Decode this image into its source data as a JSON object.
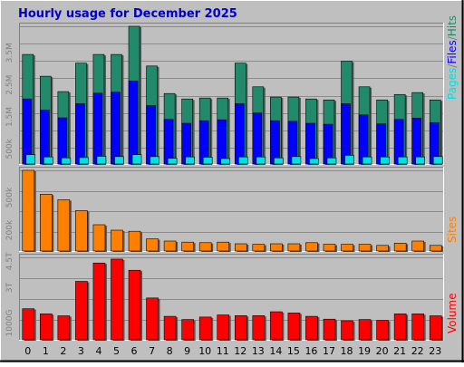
{
  "title": "Hourly usage for December 2025",
  "colors": {
    "hits": "#218a6b",
    "files": "#0000ff",
    "pages": "#00e0e0",
    "sites": "#ff8000",
    "volume": "#ff0000",
    "title": "#0000cc",
    "panel": "#bfbfbf"
  },
  "chart_data": [
    {
      "type": "bar",
      "title": "Hourly usage for December 2025",
      "categories": [
        "0",
        "1",
        "2",
        "3",
        "4",
        "5",
        "6",
        "7",
        "8",
        "9",
        "10",
        "11",
        "12",
        "13",
        "14",
        "15",
        "16",
        "17",
        "18",
        "19",
        "20",
        "21",
        "22",
        "23"
      ],
      "yticks": [
        "500k",
        "1.5M",
        "2.5M",
        "3.5M"
      ],
      "ytick_values": [
        500000,
        1500000,
        2500000,
        3500000
      ],
      "ylim": [
        0,
        4330000
      ],
      "legend": [
        {
          "label": "Pages",
          "color": "#00e0e0"
        },
        {
          "label": "/",
          "color": "#808080"
        },
        {
          "label": "Files",
          "color": "#0000ff"
        },
        {
          "label": "/",
          "color": "#808080"
        },
        {
          "label": "Hits",
          "color": "#218a6b"
        }
      ],
      "series": [
        {
          "name": "Hits",
          "values": [
            3450000,
            2770000,
            2290000,
            3180000,
            3450000,
            3450000,
            4330000,
            3090000,
            2230000,
            2060000,
            2090000,
            2090000,
            3180000,
            2440000,
            2120000,
            2120000,
            2060000,
            2030000,
            3240000,
            2440000,
            2030000,
            2200000,
            2260000,
            2030000
          ]
        },
        {
          "name": "Files",
          "values": [
            2060000,
            1710000,
            1470000,
            1910000,
            2240000,
            2270000,
            2620000,
            1850000,
            1420000,
            1300000,
            1380000,
            1410000,
            1910000,
            1620000,
            1380000,
            1360000,
            1300000,
            1270000,
            1910000,
            1560000,
            1280000,
            1420000,
            1460000,
            1320000
          ]
        },
        {
          "name": "Pages",
          "values": [
            320000,
            250000,
            220000,
            230000,
            270000,
            260000,
            320000,
            260000,
            210000,
            250000,
            240000,
            200000,
            250000,
            250000,
            220000,
            260000,
            200000,
            220000,
            300000,
            250000,
            250000,
            250000,
            250000,
            260000
          ]
        }
      ]
    },
    {
      "type": "bar",
      "categories": [
        "0",
        "1",
        "2",
        "3",
        "4",
        "5",
        "6",
        "7",
        "8",
        "9",
        "10",
        "11",
        "12",
        "13",
        "14",
        "15",
        "16",
        "17",
        "18",
        "19",
        "20",
        "21",
        "22",
        "23"
      ],
      "yticks": [
        "200k",
        "500k"
      ],
      "ytick_values": [
        200000,
        500000
      ],
      "ylim": [
        0,
        750000
      ],
      "legend": [
        {
          "label": "Sites",
          "color": "#ff8000"
        }
      ],
      "series": [
        {
          "name": "Sites",
          "values": [
            750000,
            530000,
            480000,
            380000,
            250000,
            200000,
            190000,
            120000,
            100000,
            90000,
            85000,
            90000,
            75000,
            70000,
            75000,
            75000,
            85000,
            70000,
            70000,
            70000,
            60000,
            80000,
            100000,
            60000
          ]
        }
      ]
    },
    {
      "type": "bar",
      "categories": [
        "0",
        "1",
        "2",
        "3",
        "4",
        "5",
        "6",
        "7",
        "8",
        "9",
        "10",
        "11",
        "12",
        "13",
        "14",
        "15",
        "16",
        "17",
        "18",
        "19",
        "20",
        "21",
        "22",
        "23"
      ],
      "yticks": [
        "1000G",
        "3T",
        "4.5T"
      ],
      "ytick_values": [
        1000,
        3000,
        4500
      ],
      "ylim": [
        0,
        4720
      ],
      "legend": [
        {
          "label": "Volume",
          "color": "#ff0000"
        }
      ],
      "series": [
        {
          "name": "Volume",
          "values": [
            1810,
            1520,
            1410,
            3360,
            4400,
            4620,
            3990,
            2420,
            1380,
            1200,
            1340,
            1460,
            1420,
            1420,
            1640,
            1570,
            1380,
            1220,
            1130,
            1200,
            1150,
            1520,
            1520,
            1410
          ]
        }
      ]
    }
  ]
}
